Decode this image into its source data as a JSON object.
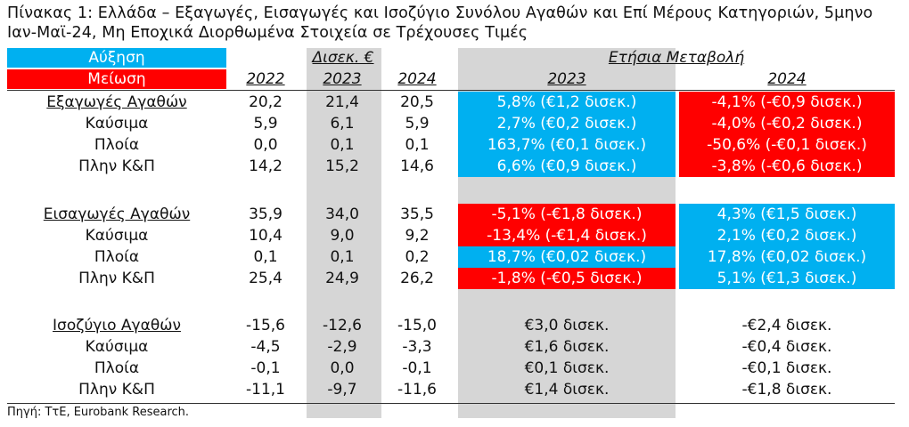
{
  "title": "Πίνακας 1: Ελλάδα – Εξαγωγές, Εισαγωγές και Ισοζύγιο Συνόλου Αγαθών και Επί Μέρους Κατηγοριών, 5μηνο Ιαν-Μαϊ-24, Μη Εποχικά Διορθωμένα Στοιχεία σε Τρέχουσες Τιμές",
  "legend": {
    "increase": "Αύξηση",
    "decrease": "Μείωση"
  },
  "colors": {
    "increase": "#00b0f0",
    "decrease": "#ff0000",
    "shade": "#d6d6d6"
  },
  "header": {
    "level_group": "Δισεκ. €",
    "change_group": "Ετήσια Μεταβολή",
    "years": [
      "2022",
      "2023",
      "2024"
    ],
    "change_years": [
      "2023",
      "2024"
    ]
  },
  "rows": [
    {
      "label": "Εξαγωγές Αγαθών",
      "v": [
        "20,2",
        "21,4",
        "20,5"
      ],
      "c23": "5,8% (€1,2 δισεκ.)",
      "c24": "-4,1% (-€0,9 δισεκ.)"
    },
    {
      "label": "Καύσιμα",
      "v": [
        "5,9",
        "6,1",
        "5,9"
      ],
      "c23": "2,7% (€0,2 δισεκ.)",
      "c24": "-4,0% (-€0,2 δισεκ.)"
    },
    {
      "label": "Πλοία",
      "v": [
        "0,0",
        "0,1",
        "0,1"
      ],
      "c23": "163,7% (€0,1 δισεκ.)",
      "c24": "-50,6% (-€0,1 δισεκ.)"
    },
    {
      "label": "Πλην Κ&Π",
      "v": [
        "14,2",
        "15,2",
        "14,6"
      ],
      "c23": "6,6% (€0,9 δισεκ.)",
      "c24": "-3,8% (-€0,6 δισεκ.)"
    },
    {
      "label": "Εισαγωγές Αγαθών",
      "v": [
        "35,9",
        "34,0",
        "35,5"
      ],
      "c23": "-5,1% (-€1,8 δισεκ.)",
      "c24": "4,3% (€1,5 δισεκ.)"
    },
    {
      "label": "Καύσιμα",
      "v": [
        "10,4",
        "9,0",
        "9,2"
      ],
      "c23": "-13,4% (-€1,4 δισεκ.)",
      "c24": "2,1% (€0,2 δισεκ.)"
    },
    {
      "label": "Πλοία",
      "v": [
        "0,1",
        "0,1",
        "0,2"
      ],
      "c23": "18,7% (€0,02 δισεκ.)",
      "c24": "17,8% (€0,02 δισεκ.)"
    },
    {
      "label": "Πλην Κ&Π",
      "v": [
        "25,4",
        "24,9",
        "26,2"
      ],
      "c23": "-1,8% (-€0,5 δισεκ.)",
      "c24": "5,1% (€1,3 δισεκ.)"
    },
    {
      "label": "Ισοζύγιο Αγαθών",
      "v": [
        "-15,6",
        "-12,6",
        "-15,0"
      ],
      "c23": "€3,0 δισεκ.",
      "c24": "-€2,4 δισεκ."
    },
    {
      "label": "Καύσιμα",
      "v": [
        "-4,5",
        "-2,9",
        "-3,3"
      ],
      "c23": "€1,6 δισεκ.",
      "c24": "-€0,4 δισεκ."
    },
    {
      "label": "Πλοία",
      "v": [
        "-0,1",
        "0,0",
        "-0,1"
      ],
      "c23": "€0,1 δισεκ.",
      "c24": "-€0,1 δισεκ."
    },
    {
      "label": "Πλην Κ&Π",
      "v": [
        "-11,1",
        "-9,7",
        "-11,6"
      ],
      "c23": "€1,4 δισεκ.",
      "c24": "-€1,8 δισεκ."
    }
  ],
  "source": "Πηγή: ΤτΕ, Eurobank Research."
}
